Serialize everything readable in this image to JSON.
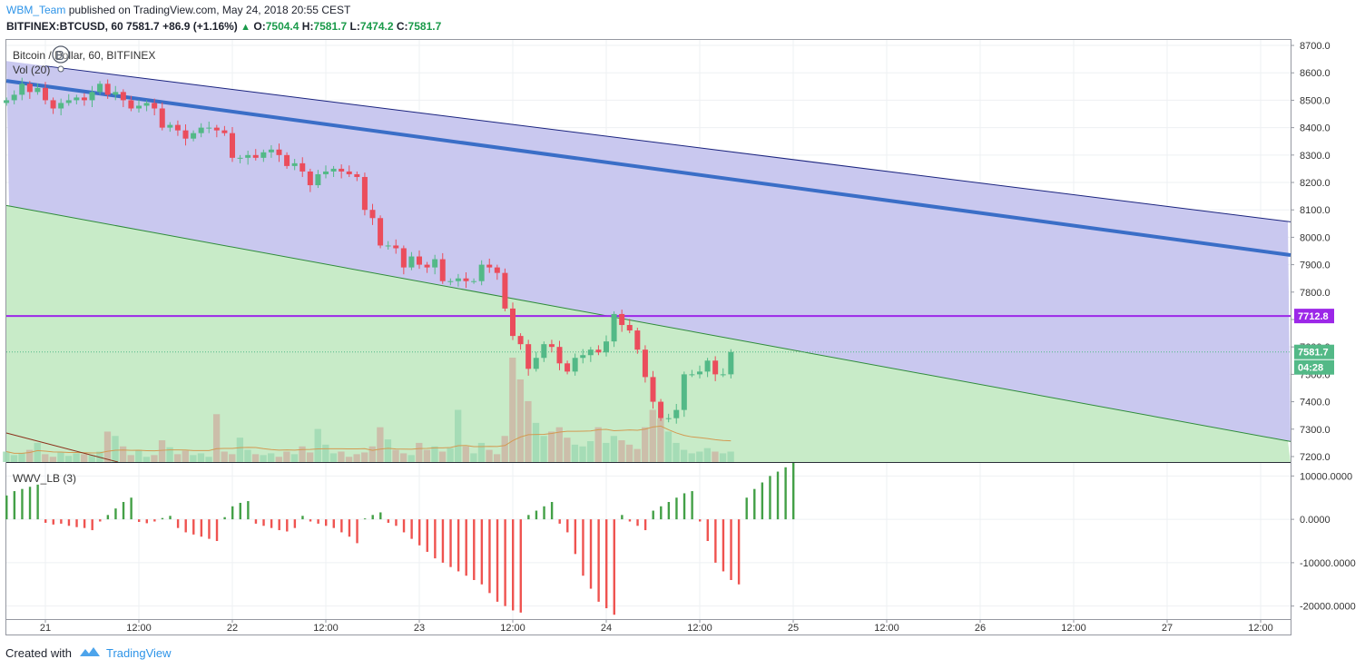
{
  "header": {
    "author": "WBM_Team",
    "published_text": "published on TradingView.com, May 24, 2018 20:55 CEST",
    "symbol": "BITFINEX:BTCUSD, 60",
    "last_price": "7581.7",
    "change": "+86.9 (+1.16%)",
    "o_label": "O:",
    "o_val": "7504.4",
    "h_label": "H:",
    "h_val": "7581.7",
    "l_label": "L:",
    "l_val": "7474.2",
    "c_label": "C:",
    "c_val": "7581.7"
  },
  "legend": {
    "main_title": "Bitcoin / Dollar, 60, BITFINEX",
    "volume_title": "Vol (20)",
    "indicator_title": "WWV_LB (3)"
  },
  "footer": {
    "created_with": "Created with",
    "brand": "TradingView"
  },
  "price_labels": {
    "horizontal_level": "7712.8",
    "last_price": "7581.7",
    "countdown": "04:28"
  },
  "colors": {
    "up": "#53b987",
    "down": "#eb4d5c",
    "channel_fill": "#c6c5ee",
    "lower_fill": "#c8ebc8",
    "trend_thick": "#3a6ec7",
    "hline": "#9c27e8",
    "osc_pos": "#43a047",
    "osc_neg": "#ef5350"
  },
  "chart_data": [
    {
      "type": "candlestick",
      "title": "Bitcoin / Dollar, 60, BITFINEX",
      "xlabel": "",
      "ylabel": "",
      "x_tick_labels": [
        "21",
        "12:00",
        "22",
        "12:00",
        "23",
        "12:00",
        "24",
        "12:00",
        "25",
        "12:00",
        "26",
        "12:00",
        "27",
        "12:00"
      ],
      "y_tick_labels": [
        "8700.0",
        "8600.0",
        "8500.0",
        "8400.0",
        "8300.0",
        "8200.0",
        "8100.0",
        "8000.0",
        "7900.0",
        "7800.0",
        "7700.0",
        "7600.0",
        "7500.0",
        "7400.0",
        "7300.0",
        "7200.0"
      ],
      "ylim": [
        7180,
        8720
      ],
      "closes": [
        8500,
        8520,
        8560,
        8530,
        8545,
        8500,
        8470,
        8490,
        8500,
        8510,
        8500,
        8530,
        8560,
        8520,
        8530,
        8500,
        8470,
        8480,
        8490,
        8470,
        8400,
        8410,
        8390,
        8360,
        8380,
        8400,
        8400,
        8390,
        8380,
        8290,
        8290,
        8300,
        8290,
        8310,
        8320,
        8300,
        8260,
        8270,
        8240,
        8190,
        8230,
        8240,
        8250,
        8240,
        8230,
        8220,
        8100,
        8070,
        7970,
        7970,
        7960,
        7890,
        7930,
        7900,
        7890,
        7920,
        7840,
        7840,
        7850,
        7840,
        7840,
        7900,
        7890,
        7870,
        7740,
        7640,
        7610,
        7520,
        7560,
        7610,
        7600,
        7540,
        7510,
        7560,
        7570,
        7590,
        7580,
        7620,
        7720,
        7680,
        7660,
        7590,
        7490,
        7400,
        7340,
        7340,
        7370,
        7500,
        7500,
        7510,
        7550,
        7500,
        7500,
        7581.7
      ],
      "horizontal_level": 7712.8,
      "last_price": 7581.7,
      "trendlines": [
        {
          "name": "channel-top",
          "points": [
            [
              "21 00:00",
              8625
            ],
            [
              "27 12:00",
              8070
            ]
          ]
        },
        {
          "name": "channel-mid-thick",
          "points": [
            [
              "20 23:00",
              8555
            ],
            [
              "27 12:00",
              7950
            ]
          ]
        },
        {
          "name": "channel-bottom",
          "points": [
            [
              "20 23:00",
              8095
            ],
            [
              "27 12:00",
              7275
            ]
          ]
        }
      ],
      "volume": {
        "title": "Vol (20)",
        "values": [
          12,
          8,
          10,
          14,
          22,
          9,
          6,
          11,
          7,
          10,
          9,
          8,
          12,
          35,
          30,
          18,
          8,
          14,
          6,
          8,
          25,
          17,
          9,
          13,
          8,
          10,
          6,
          55,
          12,
          9,
          28,
          14,
          9,
          8,
          10,
          6,
          12,
          9,
          18,
          11,
          38,
          20,
          10,
          12,
          6,
          9,
          11,
          18,
          40,
          26,
          14,
          10,
          8,
          22,
          14,
          18,
          12,
          16,
          60,
          18,
          10,
          22,
          14,
          9,
          30,
          120,
          95,
          70,
          45,
          30,
          35,
          40,
          28,
          20,
          18,
          24,
          40,
          22,
          30,
          25,
          20,
          15,
          40,
          60,
          50,
          35,
          22,
          14,
          10,
          12,
          16,
          12,
          10,
          12
        ],
        "ma_label": "Vol (20)"
      }
    },
    {
      "type": "bar",
      "title": "WWV_LB (3)",
      "y_tick_labels": [
        "10000.0000",
        "0.0000",
        "-10000.0000",
        "-20000.0000"
      ],
      "ylim": [
        -23000,
        13000
      ],
      "values": [
        5500,
        6500,
        7000,
        7500,
        8000,
        -800,
        -1200,
        -1000,
        -1500,
        -1800,
        -2000,
        -2500,
        -500,
        1000,
        2500,
        4000,
        5000,
        -600,
        -900,
        -500,
        300,
        800,
        -2000,
        -3000,
        -3500,
        -4000,
        -4500,
        -5000,
        500,
        3000,
        3800,
        4200,
        -1000,
        -1500,
        -2000,
        -2500,
        -2800,
        -2000,
        800,
        -500,
        -1000,
        -1500,
        -2000,
        -3000,
        -4000,
        -5500,
        200,
        1000,
        1600,
        -800,
        -1500,
        -3000,
        -4500,
        -6000,
        -7500,
        -9000,
        -10000,
        -11000,
        -12000,
        -13000,
        -14000,
        -15000,
        -17000,
        -19000,
        -20000,
        -21000,
        -21500,
        1000,
        2000,
        3000,
        4000,
        -1000,
        -3000,
        -8000,
        -13000,
        -16000,
        -19000,
        -20500,
        -22000,
        1000,
        -500,
        -1500,
        -2500,
        2000,
        3000,
        4000,
        5000,
        6000,
        6500,
        -500,
        -5000,
        -10000,
        -12000,
        -14000,
        -15000,
        5000,
        7000,
        8500,
        10000,
        11000,
        12000,
        13000
      ]
    }
  ]
}
